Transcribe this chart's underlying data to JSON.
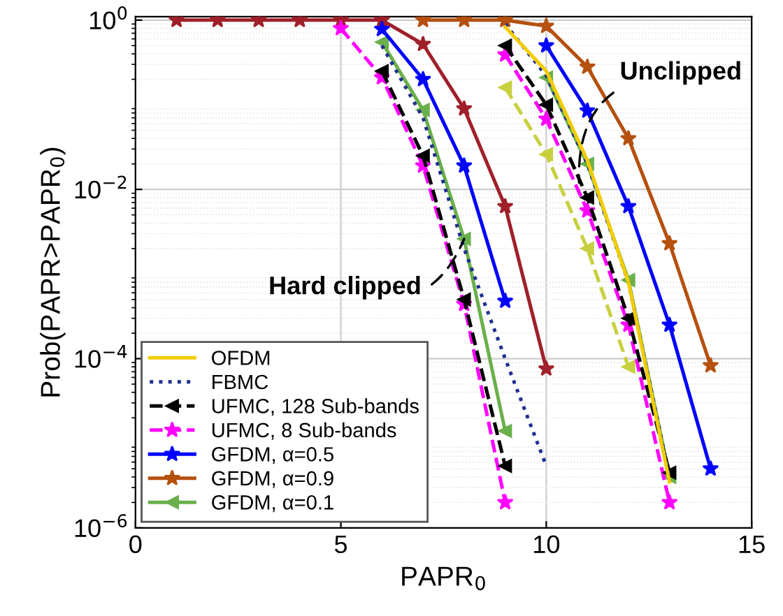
{
  "chart_data": {
    "type": "line",
    "xlabel": "PAPR$_{0}$",
    "ylabel": "Prob(PAPR>PAPR$_{0}$)",
    "xlim": [
      0,
      15
    ],
    "ylim": [
      1e-06,
      1.1
    ],
    "xticks": [
      0,
      5,
      10,
      15
    ],
    "yticks": [
      {
        "value": 1e-06,
        "label": "10$^{−6}$"
      },
      {
        "value": 0.0001,
        "label": "10$^{−4}$"
      },
      {
        "value": 0.01,
        "label": "10$^{−2}$"
      },
      {
        "value": 1,
        "label": "10$^{0}$"
      }
    ],
    "log": "y",
    "grid": true,
    "legend": "bottom left",
    "annotations": [
      {
        "text": "Hard clipped",
        "x": 8,
        "y": 0.0026
      },
      {
        "text": "Unclipped",
        "x": 10.8,
        "y": 0.012
      }
    ],
    "series": [
      {
        "name": "OFDM",
        "color": "#f2cc00",
        "line_style": "solid",
        "marker": "none",
        "x": [
          9,
          10,
          11,
          12,
          13
        ],
        "values": [
          0.83,
          0.25,
          0.022,
          0.0008,
          3.5e-06
        ]
      },
      {
        "name": "FBMC",
        "color": "#1f2f8f",
        "line_style": "dotted",
        "marker": "none",
        "x": [
          9,
          10,
          11,
          12,
          13
        ],
        "values": [
          0.9,
          0.22,
          0.02,
          0.0008,
          4e-06
        ]
      },
      {
        "name": "UFMC, 128 Sub-bands",
        "color": "#000000",
        "line_style": "dashed",
        "marker": "triangle",
        "x": [
          9,
          10,
          11,
          12,
          13
        ],
        "values": [
          0.5,
          0.1,
          0.008,
          0.0003,
          4.5e-06
        ]
      },
      {
        "name": "UFMC, 8 Sub-bands",
        "color": "#ff00ff",
        "line_style": "dashed",
        "marker": "star",
        "x": [
          9,
          10,
          11,
          12,
          13
        ],
        "values": [
          0.39,
          0.068,
          0.0056,
          0.00025,
          2e-06
        ]
      },
      {
        "name": "GFDM, α=0.5",
        "color": "#0000ff",
        "line_style": "solid",
        "marker": "star",
        "x": [
          10,
          11,
          12,
          13,
          14
        ],
        "values": [
          0.5,
          0.085,
          0.0063,
          0.00025,
          5e-06
        ]
      },
      {
        "name": "GFDM, α=0.9",
        "color": "#b5500f",
        "line_style": "solid",
        "marker": "star",
        "x": [
          7,
          8,
          9,
          10,
          11,
          12,
          13,
          14
        ],
        "values": [
          1,
          1,
          1,
          0.85,
          0.28,
          0.04,
          0.0023,
          8.3e-05
        ]
      },
      {
        "name": "GFDM, α=0.1",
        "color": "#6ab04c",
        "line_style": "solid",
        "marker": "triangle",
        "x": [
          10,
          11,
          12,
          13
        ],
        "values": [
          0.21,
          0.02,
          0.00085,
          4e-06
        ]
      },
      {
        "color": "#c8d040",
        "line_style": "dashed",
        "marker": "triangle",
        "x": [
          9,
          10,
          11,
          12
        ],
        "values": [
          0.16,
          0.026,
          0.002,
          8e-05
        ]
      },
      {
        "color": "#1f2f8f",
        "line_style": "dotted",
        "marker": "none",
        "x": [
          6,
          7,
          8,
          9,
          10
        ],
        "values": [
          0.5,
          0.07,
          0.002,
          0.0001,
          5.4e-06
        ]
      },
      {
        "color": "#000000",
        "line_style": "dashed",
        "marker": "triangle",
        "x": [
          6,
          7,
          8,
          9
        ],
        "values": [
          0.25,
          0.025,
          0.0005,
          5.4e-06
        ]
      },
      {
        "color": "#ff00ff",
        "line_style": "dashed",
        "marker": "star",
        "x": [
          5,
          6,
          7,
          8,
          9
        ],
        "values": [
          0.8,
          0.21,
          0.019,
          0.00044,
          2e-06
        ]
      },
      {
        "color": "#0000ff",
        "line_style": "solid",
        "marker": "star",
        "x": [
          6,
          7,
          8,
          9
        ],
        "values": [
          0.78,
          0.2,
          0.019,
          0.00048
        ]
      },
      {
        "color": "#a0202a",
        "line_style": "solid",
        "marker": "star",
        "x": [
          1,
          2,
          3,
          4,
          5,
          6,
          7,
          8,
          9,
          10
        ],
        "values": [
          1,
          1,
          1,
          1,
          1,
          1,
          0.52,
          0.09,
          0.0063,
          7.6e-05
        ]
      },
      {
        "color": "#6ab04c",
        "line_style": "solid",
        "marker": "triangle",
        "x": [
          6,
          7,
          8,
          9
        ],
        "values": [
          0.55,
          0.087,
          0.0026,
          1.4e-05
        ]
      }
    ]
  }
}
